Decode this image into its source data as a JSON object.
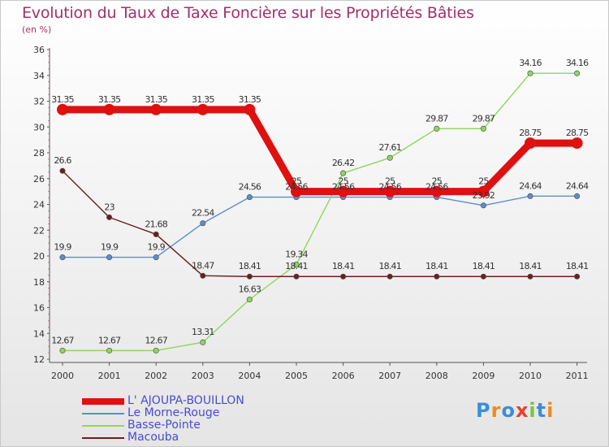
{
  "chart_data": {
    "type": "line",
    "title": "Evolution du Taux de Taxe Foncière sur les Propriétés Bâties",
    "ylabel": "(en %)",
    "xlabel": "",
    "categories": [
      "2000",
      "2001",
      "2002",
      "2003",
      "2004",
      "2005",
      "2006",
      "2007",
      "2008",
      "2009",
      "2010",
      "2011"
    ],
    "ylim": [
      12,
      36
    ],
    "yticks": [
      12,
      14,
      16,
      18,
      20,
      22,
      24,
      26,
      28,
      30,
      32,
      34,
      36
    ],
    "grid": false,
    "series": [
      {
        "name": "L' AJOUPA-BOUILLON",
        "color": "#e01010",
        "bold": true,
        "values": [
          31.35,
          31.35,
          31.35,
          31.35,
          31.35,
          25,
          25,
          25,
          25,
          25,
          28.75,
          28.75
        ],
        "labels": [
          "31.35",
          "31.35",
          "31.35",
          "31.35",
          "31.35",
          "25",
          "25",
          "25",
          "25",
          "25",
          "28.75",
          "28.75"
        ]
      },
      {
        "name": "Le Morne-Rouge",
        "color": "#5b8fc9",
        "values": [
          19.9,
          19.9,
          19.9,
          22.54,
          24.56,
          24.56,
          24.56,
          24.56,
          24.56,
          23.92,
          24.64,
          24.64
        ],
        "labels": [
          "19.9",
          "19.9",
          "19.9",
          "22.54",
          "24.56",
          "24.56",
          "24.56",
          "24.56",
          "24.56",
          "23.92",
          "24.64",
          "24.64"
        ]
      },
      {
        "name": "Basse-Pointe",
        "color": "#8ed65c",
        "values": [
          12.67,
          12.67,
          12.67,
          13.31,
          16.63,
          19.34,
          26.42,
          27.61,
          29.87,
          29.87,
          34.16,
          34.16
        ],
        "labels": [
          "12.67",
          "12.67",
          "12.67",
          "13.31",
          "16.63",
          "19.34",
          "26.42",
          "27.61",
          "29.87",
          "29.87",
          "34.16",
          "34.16"
        ]
      },
      {
        "name": "Macouba",
        "color": "#6b1e1e",
        "values": [
          26.6,
          23,
          21.68,
          18.47,
          18.41,
          18.41,
          18.41,
          18.41,
          18.41,
          18.41,
          18.41,
          18.41
        ],
        "labels": [
          "26.6",
          "23",
          "21.68",
          "18.47",
          "18.41",
          "18.41",
          "18.41",
          "18.41",
          "18.41",
          "18.41",
          "18.41",
          "18.41"
        ]
      }
    ]
  },
  "branding": {
    "logo_text": "Proxiti"
  }
}
